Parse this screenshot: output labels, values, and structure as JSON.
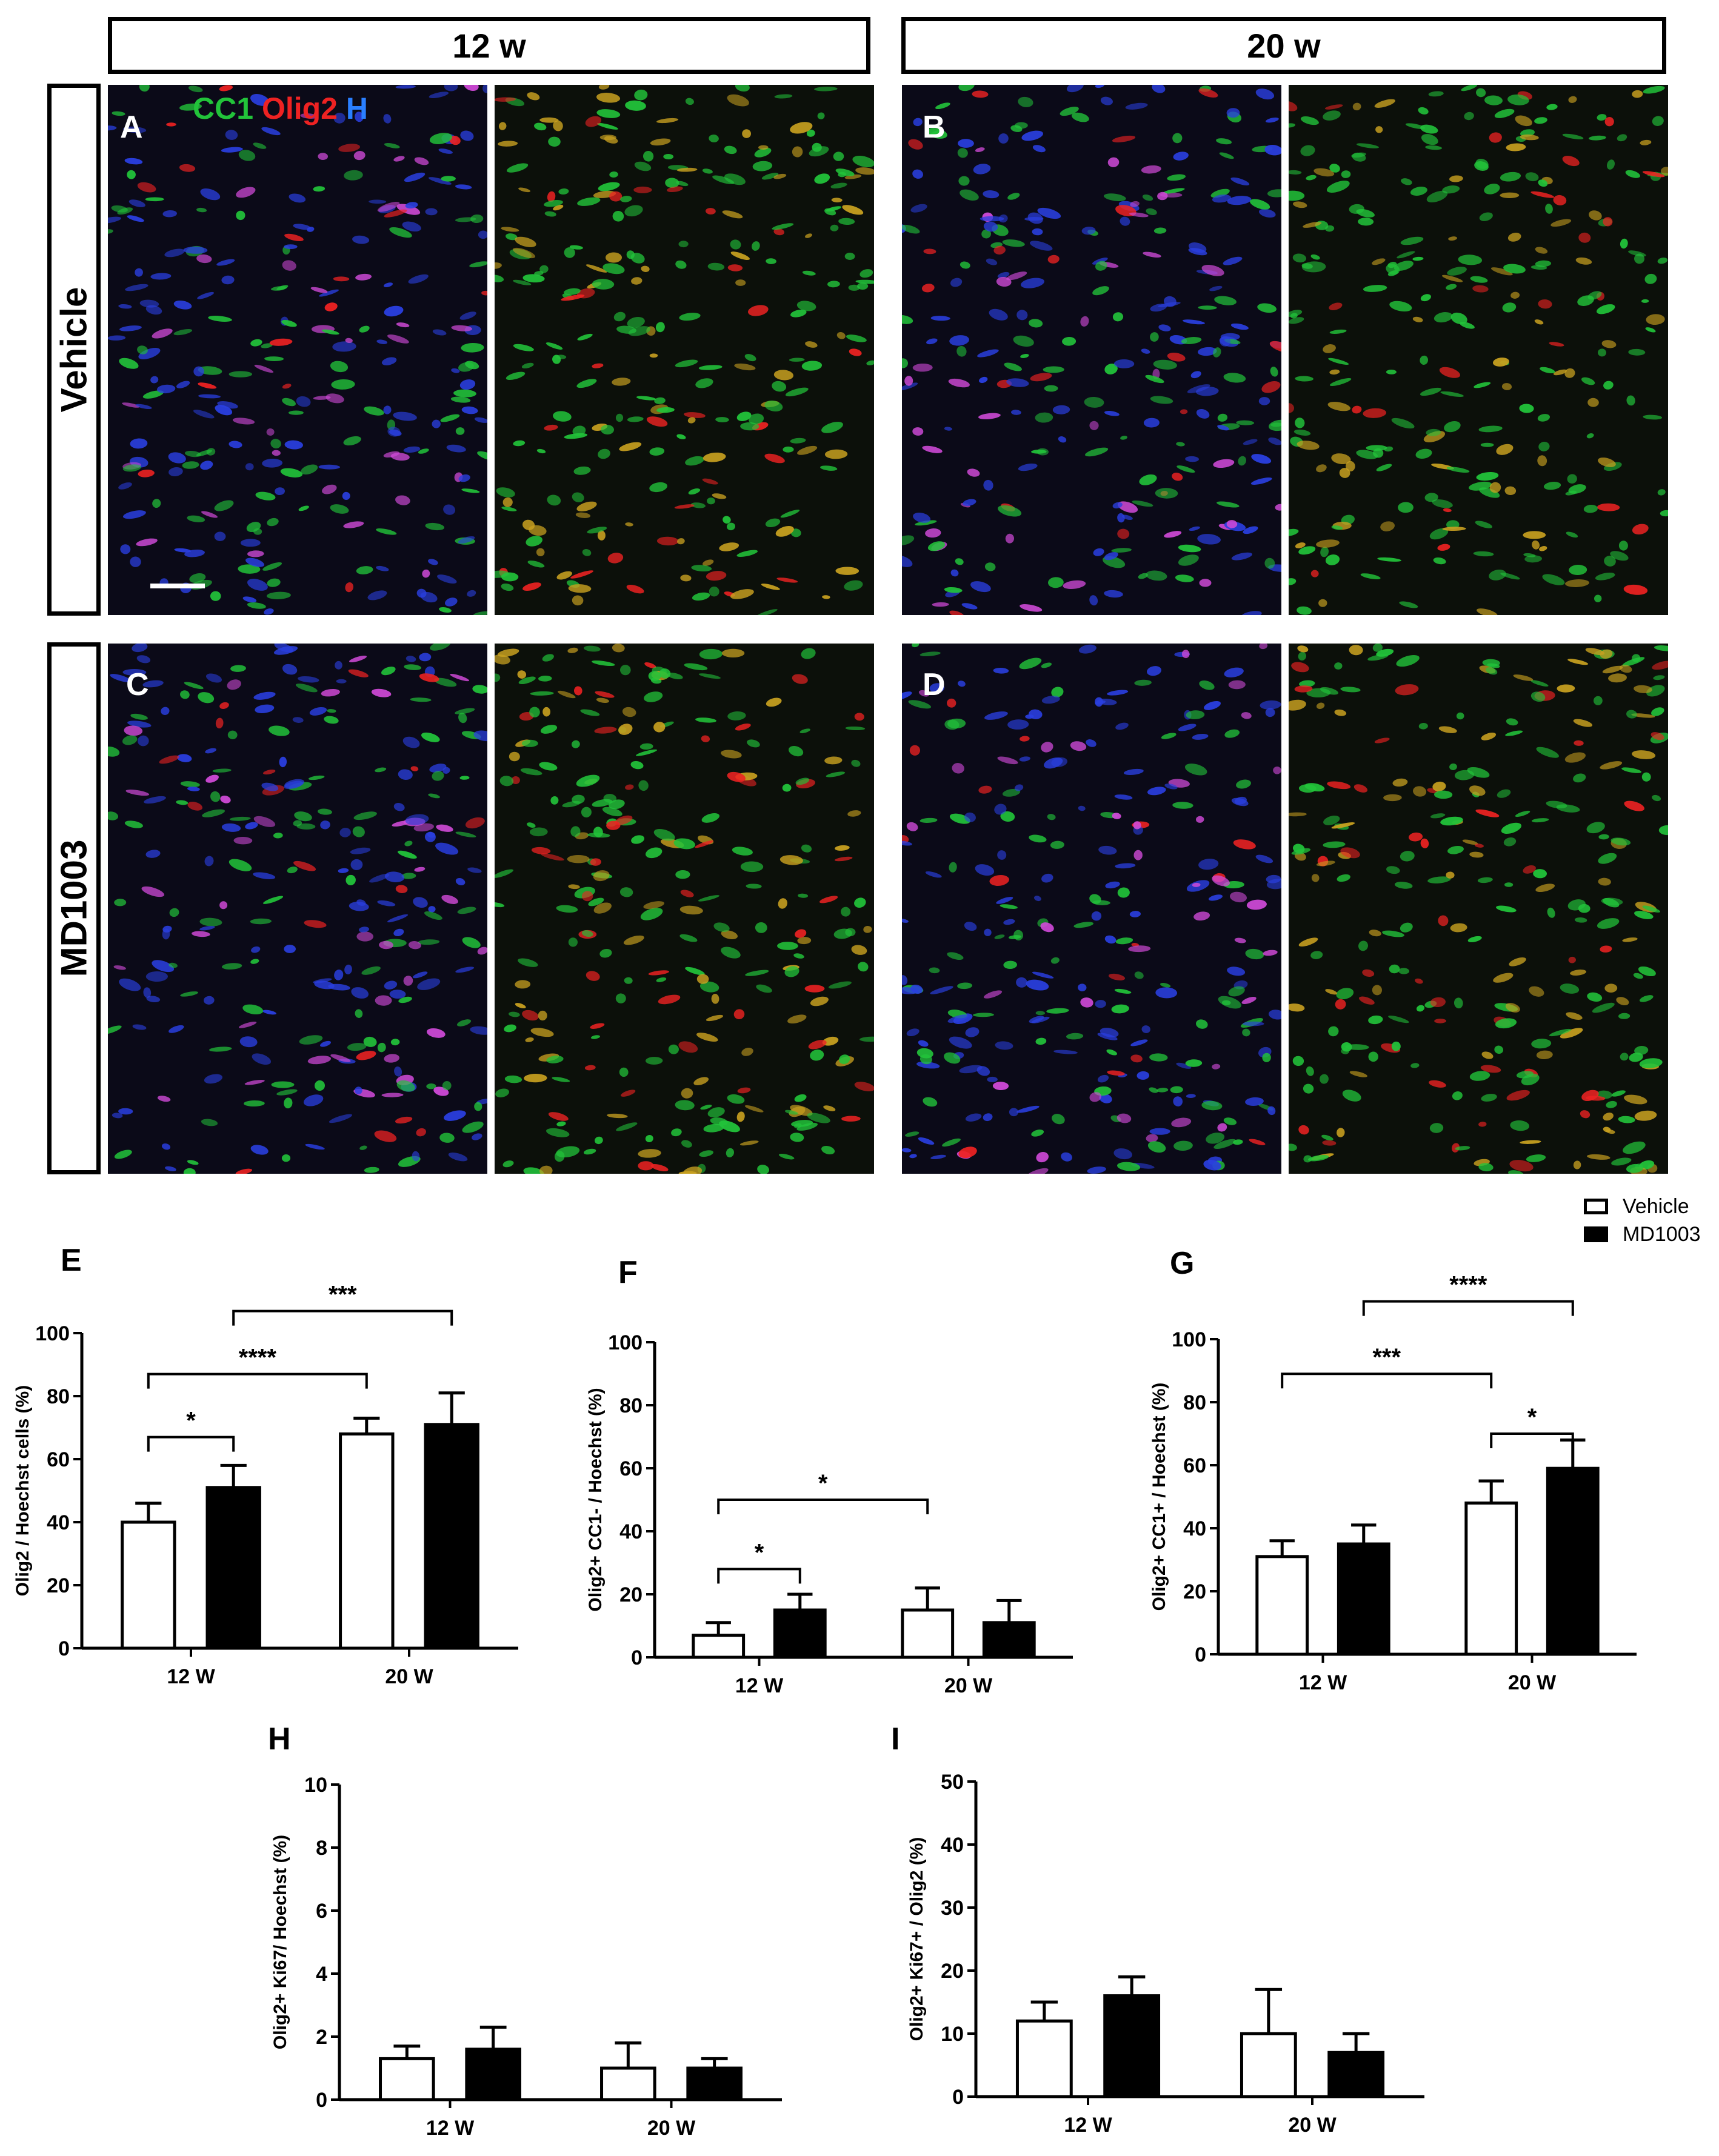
{
  "header": {
    "col1": "12 w",
    "col2": "20 w"
  },
  "rows": {
    "row1": "Vehicle",
    "row2": "MD1003"
  },
  "panels": {
    "A": "A",
    "B": "B",
    "C": "C",
    "D": "D"
  },
  "stain_legend": {
    "cc1": "CC1",
    "olig2": "Olig2",
    "h": "H"
  },
  "legend": {
    "vehicle": "Vehicle",
    "md1003": "MD1003"
  },
  "colors": {
    "vehicle_fill": "#ffffff",
    "md1003_fill": "#000000",
    "green": "#22c33a",
    "red": "#ee2222",
    "blue": "#2a3fe0"
  },
  "chart_data": [
    {
      "id": "E",
      "type": "bar",
      "letter": "E",
      "ylabel": "Olig2 / Hoechst cells (%)",
      "categories": [
        "12 W",
        "20 W"
      ],
      "ylim": [
        0,
        100
      ],
      "yticks": [
        0,
        20,
        40,
        60,
        80,
        100
      ],
      "series": [
        {
          "name": "Vehicle",
          "values": [
            40,
            68
          ],
          "errors": [
            6,
            5
          ]
        },
        {
          "name": "MD1003",
          "values": [
            51,
            71
          ],
          "errors": [
            7,
            10
          ]
        }
      ],
      "significance": [
        {
          "from": [
            0,
            0
          ],
          "to": [
            0,
            1
          ],
          "label": "*",
          "level": 67
        },
        {
          "from": [
            0,
            0
          ],
          "to": [
            1,
            0
          ],
          "label": "****",
          "level": 87
        },
        {
          "from": [
            0,
            1
          ],
          "to": [
            1,
            1
          ],
          "label": "***",
          "level": 107
        }
      ]
    },
    {
      "id": "F",
      "type": "bar",
      "letter": "F",
      "ylabel": "Olig2+ CC1- / Hoechst (%)",
      "categories": [
        "12 W",
        "20 W"
      ],
      "ylim": [
        0,
        100
      ],
      "yticks": [
        0,
        20,
        40,
        60,
        80,
        100
      ],
      "series": [
        {
          "name": "Vehicle",
          "values": [
            7,
            15
          ],
          "errors": [
            4,
            7
          ]
        },
        {
          "name": "MD1003",
          "values": [
            15,
            11
          ],
          "errors": [
            5,
            7
          ]
        }
      ],
      "significance": [
        {
          "from": [
            0,
            0
          ],
          "to": [
            0,
            1
          ],
          "label": "*",
          "level": 28
        },
        {
          "from": [
            0,
            0
          ],
          "to": [
            1,
            0
          ],
          "label": "*",
          "level": 50
        }
      ]
    },
    {
      "id": "G",
      "type": "bar",
      "letter": "G",
      "ylabel": "Olig2+ CC1+ / Hoechst (%)",
      "categories": [
        "12 W",
        "20 W"
      ],
      "ylim": [
        0,
        100
      ],
      "yticks": [
        0,
        20,
        40,
        60,
        80,
        100
      ],
      "series": [
        {
          "name": "Vehicle",
          "values": [
            31,
            48
          ],
          "errors": [
            5,
            7
          ]
        },
        {
          "name": "MD1003",
          "values": [
            35,
            59
          ],
          "errors": [
            6,
            9
          ]
        }
      ],
      "significance": [
        {
          "from": [
            1,
            0
          ],
          "to": [
            1,
            1
          ],
          "label": "*",
          "level": 70
        },
        {
          "from": [
            0,
            0
          ],
          "to": [
            1,
            0
          ],
          "label": "***",
          "level": 89
        },
        {
          "from": [
            0,
            1
          ],
          "to": [
            1,
            1
          ],
          "label": "****",
          "level": 112
        }
      ]
    },
    {
      "id": "H",
      "type": "bar",
      "letter": "H",
      "ylabel": "Olig2+ Ki67/ Hoechst (%)",
      "categories": [
        "12 W",
        "20 W"
      ],
      "ylim": [
        0,
        10
      ],
      "yticks": [
        0,
        2,
        4,
        6,
        8,
        10
      ],
      "series": [
        {
          "name": "Vehicle",
          "values": [
            1.3,
            1.0
          ],
          "errors": [
            0.4,
            0.8
          ]
        },
        {
          "name": "MD1003",
          "values": [
            1.6,
            1.0
          ],
          "errors": [
            0.7,
            0.3
          ]
        }
      ],
      "significance": []
    },
    {
      "id": "I",
      "type": "bar",
      "letter": "I",
      "ylabel": "Olig2+ Ki67+ / Olig2 (%)",
      "categories": [
        "12 W",
        "20 W"
      ],
      "ylim": [
        0,
        50
      ],
      "yticks": [
        0,
        10,
        20,
        30,
        40,
        50
      ],
      "series": [
        {
          "name": "Vehicle",
          "values": [
            12,
            10
          ],
          "errors": [
            3,
            7
          ]
        },
        {
          "name": "MD1003",
          "values": [
            16,
            7
          ],
          "errors": [
            3,
            3
          ]
        }
      ],
      "significance": []
    }
  ]
}
